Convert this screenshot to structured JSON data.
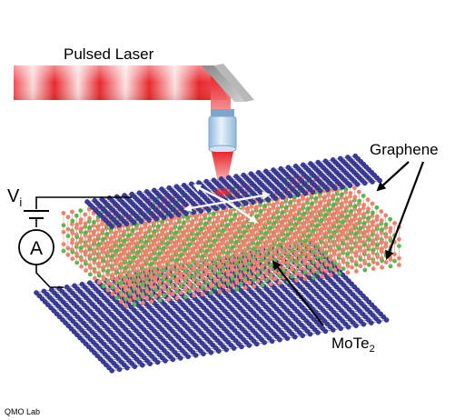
{
  "labels": {
    "laser": "Pulsed Laser",
    "graphene": "Graphene",
    "mote_base": "MoTe",
    "mote_sub": "2",
    "voltage_base": "V",
    "voltage_sub": "i",
    "ammeter": "A",
    "credit": "QMO Lab"
  },
  "colors": {
    "laser": "#e8262b",
    "graphene_atom": "#3b3b98",
    "mo_atom": "#52b84a",
    "te_atom": "#f0806a",
    "objective": "#b9d6ee",
    "arrow": "#000000"
  },
  "icons": {
    "mirror": "mirror-icon",
    "objective": "objective-lens-icon",
    "ammeter": "ammeter-icon",
    "battery": "battery-icon"
  }
}
